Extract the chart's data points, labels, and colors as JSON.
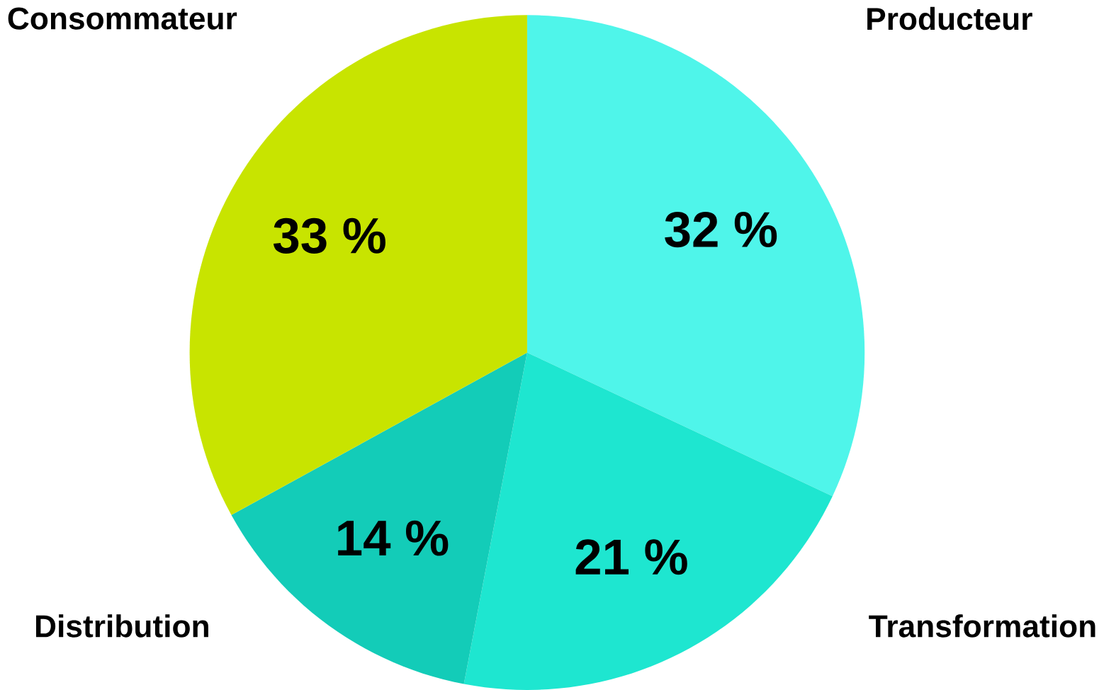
{
  "chart_data": {
    "type": "pie",
    "categories": [
      "Producteur",
      "Transformation",
      "Distribution",
      "Consommateur"
    ],
    "values": [
      32,
      21,
      14,
      33
    ],
    "colors": [
      "#4ff5ea",
      "#1ee6d0",
      "#13ccb8",
      "#c8e400"
    ],
    "value_labels": [
      "32 %",
      "21 %",
      "14 %",
      "33 %"
    ]
  }
}
